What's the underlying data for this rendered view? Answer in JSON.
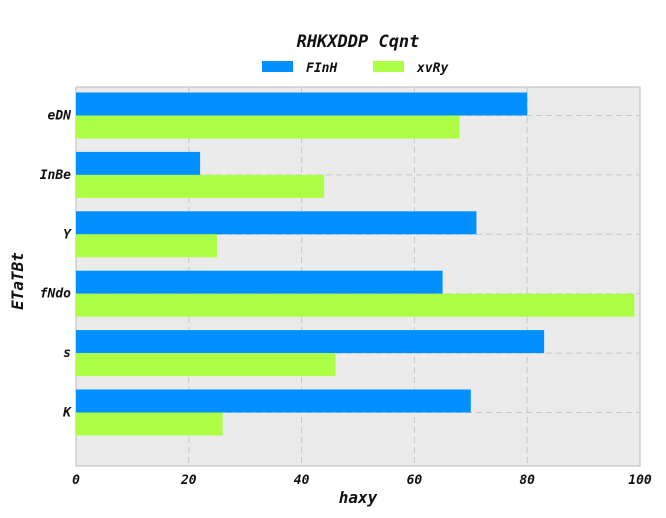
{
  "chart_data": {
    "type": "bar",
    "orientation": "horizontal",
    "title": "RHKXDDP Cqnt",
    "xlabel": "haxy",
    "ylabel": "ETaTBt",
    "categories": [
      "eDN",
      "InBe",
      "Y",
      "fNdo",
      "s",
      "K"
    ],
    "series": [
      {
        "name": "FInH",
        "color": "#0090ff",
        "values": [
          80,
          22,
          71,
          65,
          83,
          70
        ]
      },
      {
        "name": "xvRy",
        "color": "#adff45",
        "values": [
          68,
          44,
          25,
          99,
          46,
          26
        ]
      }
    ],
    "xlim": [
      0,
      100
    ],
    "xticks": [
      0,
      20,
      40,
      60,
      80,
      100
    ],
    "grid": true,
    "legend": "top-center",
    "plot_background": "#ebebeb"
  }
}
